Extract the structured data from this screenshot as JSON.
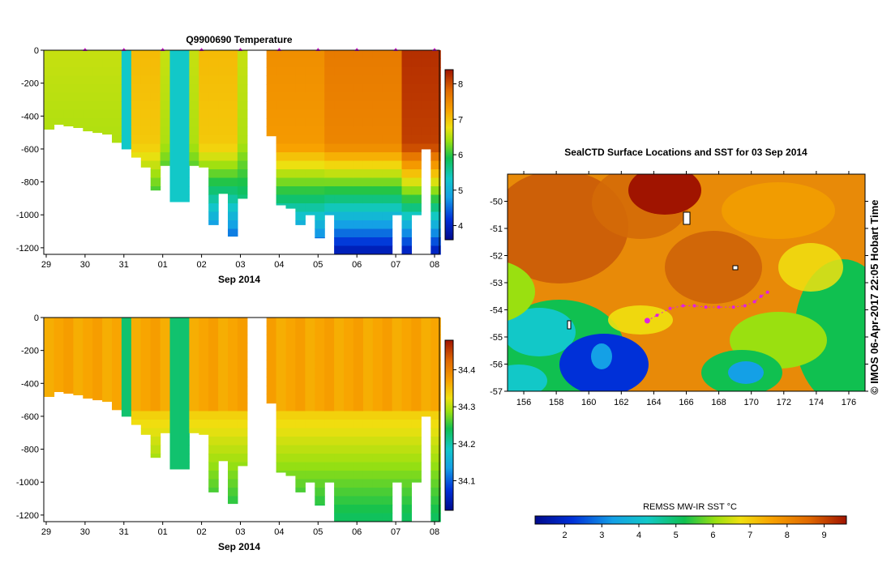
{
  "charts": [
    {
      "type": "heatmap",
      "title": "Q9900690  Temperature",
      "xlabel": "Sep 2014",
      "x_ticks": [
        "29",
        "30",
        "31",
        "01",
        "02",
        "03",
        "04",
        "05",
        "06",
        "07",
        "08"
      ],
      "y_ticks": [
        "0",
        "-200",
        "-400",
        "-600",
        "-800",
        "-1000",
        "-1200"
      ],
      "ylim": [
        -1240,
        0
      ],
      "colorbar": {
        "ticks": [
          "4",
          "5",
          "6",
          "7",
          "8"
        ],
        "range": [
          3.6,
          8.4
        ]
      },
      "profile_markers": [
        "30",
        "31",
        "01",
        "02",
        "03",
        "04",
        "05",
        "06",
        "07",
        "08"
      ]
    },
    {
      "type": "heatmap",
      "title": "",
      "xlabel": "Sep 2014",
      "x_ticks": [
        "29",
        "30",
        "31",
        "01",
        "02",
        "03",
        "04",
        "05",
        "06",
        "07",
        "08"
      ],
      "y_ticks": [
        "0",
        "-200",
        "-400",
        "-600",
        "-800",
        "-1000",
        "-1200"
      ],
      "ylim": [
        -1240,
        0
      ],
      "colorbar": {
        "ticks": [
          "34.1",
          "34.2",
          "34.3",
          "34.4"
        ],
        "range": [
          34.02,
          34.48
        ]
      }
    }
  ],
  "map": {
    "type": "heatmap",
    "title": "SealCTD Surface Locations and SST for 03 Sep 2014",
    "x_ticks": [
      "156",
      "158",
      "160",
      "162",
      "164",
      "166",
      "168",
      "170",
      "172",
      "174",
      "176"
    ],
    "y_ticks": [
      "-50",
      "-51",
      "-52",
      "-53",
      "-54",
      "-55",
      "-56",
      "-57"
    ],
    "xlim": [
      155,
      177
    ],
    "ylim": [
      -57,
      -49
    ],
    "colorbar_label": "REMSS MW-IR SST °C",
    "colorbar_ticks": [
      "2",
      "3",
      "4",
      "5",
      "6",
      "7",
      "8",
      "9"
    ],
    "colorbar_range": [
      1.2,
      9.6
    ],
    "credit": "© IMOS 06-Apr-2017 22:05 Hobart Time",
    "seal_track": {
      "lon": [
        163.6,
        164.2,
        165.0,
        165.8,
        166.5,
        167.2,
        168.0,
        168.9,
        169.6,
        170.2,
        170.6,
        171.0
      ],
      "lat": [
        -54.4,
        -54.2,
        -53.95,
        -53.85,
        -53.85,
        -53.9,
        -53.9,
        -53.9,
        -53.85,
        -53.7,
        -53.5,
        -53.35
      ]
    }
  },
  "chart_data": [
    {
      "type": "heatmap",
      "title": "Q9900690  Temperature",
      "xlabel": "Sep 2014",
      "ylabel": "",
      "x": [
        "29",
        "30",
        "31",
        "01",
        "02",
        "03",
        "04",
        "05",
        "06",
        "07",
        "08"
      ],
      "ylim": [
        -1240,
        0
      ],
      "colorbar_range": [
        3.6,
        8.4
      ],
      "profile_max_depth_m": [
        480,
        450,
        460,
        470,
        490,
        500,
        510,
        560,
        600,
        650,
        710,
        850,
        700,
        920,
        920,
        700,
        710,
        1060,
        870,
        1130,
        900,
        510,
        520,
        520,
        940,
        960,
        1060,
        1000,
        1140,
        1000,
        1240,
        1240,
        1240,
        1240,
        1240,
        1240,
        1000,
        1240,
        1000,
        600,
        1240
      ]
    },
    {
      "type": "heatmap",
      "title": "",
      "xlabel": "Sep 2014",
      "ylabel": "",
      "x": [
        "29",
        "30",
        "31",
        "01",
        "02",
        "03",
        "04",
        "05",
        "06",
        "07",
        "08"
      ],
      "ylim": [
        -1240,
        0
      ],
      "colorbar_range": [
        34.02,
        34.48
      ]
    },
    {
      "type": "heatmap",
      "title": "SealCTD Surface Locations and SST for 03 Sep 2014",
      "xlabel": "",
      "ylabel": "",
      "xlim": [
        155,
        177
      ],
      "ylim": [
        -57,
        -49
      ],
      "colorbar_range": [
        1.2,
        9.6
      ]
    }
  ]
}
